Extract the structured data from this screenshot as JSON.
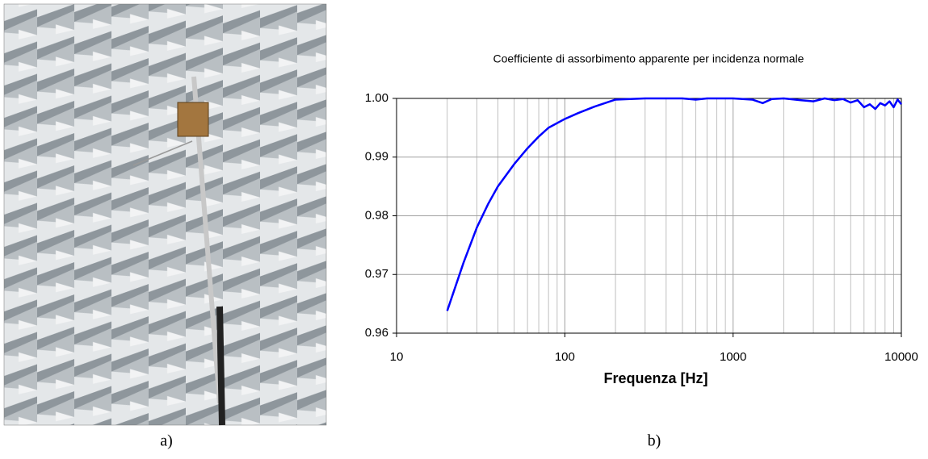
{
  "chart_data": {
    "type": "line",
    "title": "Coefficiente di assorbimento apparente per incidenza normale",
    "x_label": "Frequenza [Hz]",
    "log_x": true,
    "grid": true,
    "x": [
      20,
      25,
      30,
      35,
      40,
      50,
      60,
      70,
      80,
      100,
      120,
      150,
      200,
      300,
      500,
      600,
      700,
      1000,
      1300,
      1500,
      1700,
      2000,
      2500,
      3000,
      3500,
      4000,
      4500,
      5000,
      5500,
      6000,
      6500,
      7000,
      7500,
      8000,
      8500,
      9000,
      9500,
      10000
    ],
    "series": [
      {
        "color": "#0000ff",
        "values": [
          0.9638,
          0.972,
          0.978,
          0.982,
          0.985,
          0.9888,
          0.9915,
          0.9935,
          0.995,
          0.9965,
          0.9975,
          0.9986,
          0.9998,
          1.0,
          1.0,
          0.9998,
          1.0,
          1.0,
          0.9998,
          0.9992,
          0.9999,
          1.0,
          0.9997,
          0.9995,
          1.0,
          0.9997,
          0.9999,
          0.9993,
          0.9997,
          0.9985,
          0.999,
          0.9982,
          0.9992,
          0.9988,
          0.9995,
          0.9985,
          0.9998,
          0.999
        ]
      }
    ],
    "xlim": [
      10,
      10000
    ],
    "xticks": [
      10,
      100,
      1000,
      10000
    ],
    "x_minor_grid": [
      20,
      30,
      40,
      50,
      60,
      70,
      80,
      90,
      200,
      300,
      400,
      500,
      600,
      700,
      800,
      900,
      2000,
      3000,
      4000,
      5000,
      6000,
      7000,
      8000,
      9000
    ],
    "ylim": [
      0.96,
      1.0
    ],
    "yticks": [
      0.96,
      0.97,
      0.98,
      0.99,
      {
        "value": 1.0,
        "label": "1.00"
      }
    ]
  },
  "captions": [
    "a)",
    "b)"
  ]
}
